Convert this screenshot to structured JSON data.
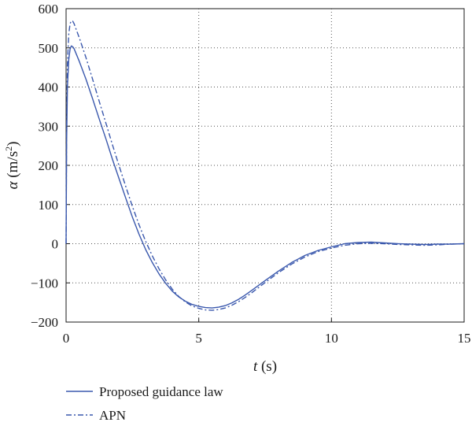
{
  "chart_data": {
    "type": "line",
    "title": "",
    "xlabel": {
      "italic": "t",
      "rest": " (s)"
    },
    "ylabel": {
      "symbol": "α",
      "rest": " (m/s",
      "sup": "2",
      "close": ")"
    },
    "xlim": [
      0,
      15
    ],
    "ylim": [
      -200,
      600
    ],
    "xticks": [
      0,
      5,
      10,
      15
    ],
    "yticks": [
      -200,
      -100,
      0,
      100,
      200,
      300,
      400,
      500,
      600
    ],
    "xtick_labels": [
      "0",
      "5",
      "10",
      "15"
    ],
    "ytick_labels": [
      "−200",
      "−100",
      "0",
      "100",
      "200",
      "300",
      "400",
      "500",
      "600"
    ],
    "grid": "dotted",
    "legend_position": "bottom-left",
    "series": [
      {
        "name": "Proposed guidance law",
        "style": "solid",
        "color": "#3a58ad",
        "x": [
          0,
          0.02,
          0.05,
          0.1,
          0.15,
          0.2,
          0.25,
          0.3,
          0.5,
          0.75,
          1.0,
          1.25,
          1.5,
          1.75,
          2.0,
          2.25,
          2.5,
          2.75,
          3.0,
          3.25,
          3.5,
          3.75,
          4.0,
          4.25,
          4.5,
          4.75,
          5.0,
          5.25,
          5.5,
          5.75,
          6.0,
          6.25,
          6.5,
          6.75,
          7.0,
          7.5,
          8.0,
          8.5,
          9.0,
          9.5,
          10.0,
          10.5,
          11.0,
          11.5,
          12.0,
          12.5,
          13.0,
          13.5,
          14.0,
          14.5,
          15.0
        ],
        "y": [
          0,
          260,
          400,
          470,
          497,
          505,
          503,
          498,
          465,
          420,
          370,
          318,
          268,
          215,
          165,
          116,
          68,
          24,
          -15,
          -48,
          -77,
          -101,
          -121,
          -136,
          -147,
          -155,
          -160,
          -163,
          -164,
          -162,
          -158,
          -151,
          -142,
          -131,
          -119,
          -94,
          -70,
          -48,
          -30,
          -17,
          -8,
          0,
          3,
          4,
          2,
          0,
          -1,
          -2,
          -1,
          -1,
          0
        ]
      },
      {
        "name": "APN",
        "style": "dashdot",
        "color": "#3a58ad",
        "x": [
          0,
          0.02,
          0.05,
          0.1,
          0.15,
          0.2,
          0.25,
          0.3,
          0.5,
          0.75,
          1.0,
          1.25,
          1.5,
          1.75,
          2.0,
          2.25,
          2.5,
          2.75,
          3.0,
          3.25,
          3.5,
          3.75,
          4.0,
          4.25,
          4.5,
          4.75,
          5.0,
          5.25,
          5.5,
          5.75,
          6.0,
          6.25,
          6.5,
          6.75,
          7.0,
          7.5,
          8.0,
          8.5,
          9.0,
          9.5,
          10.0,
          10.5,
          11.0,
          11.5,
          12.0,
          12.5,
          13.0,
          13.5,
          14.0,
          14.5,
          15.0
        ],
        "y": [
          0,
          300,
          460,
          535,
          562,
          569,
          568,
          562,
          525,
          475,
          420,
          363,
          308,
          252,
          198,
          146,
          95,
          48,
          6,
          -31,
          -64,
          -92,
          -116,
          -135,
          -149,
          -159,
          -165,
          -169,
          -170,
          -168,
          -164,
          -157,
          -148,
          -137,
          -125,
          -99,
          -74,
          -52,
          -34,
          -20,
          -11,
          -4,
          0,
          1,
          0,
          -2,
          -3,
          -4,
          -3,
          -1,
          0
        ]
      }
    ]
  }
}
